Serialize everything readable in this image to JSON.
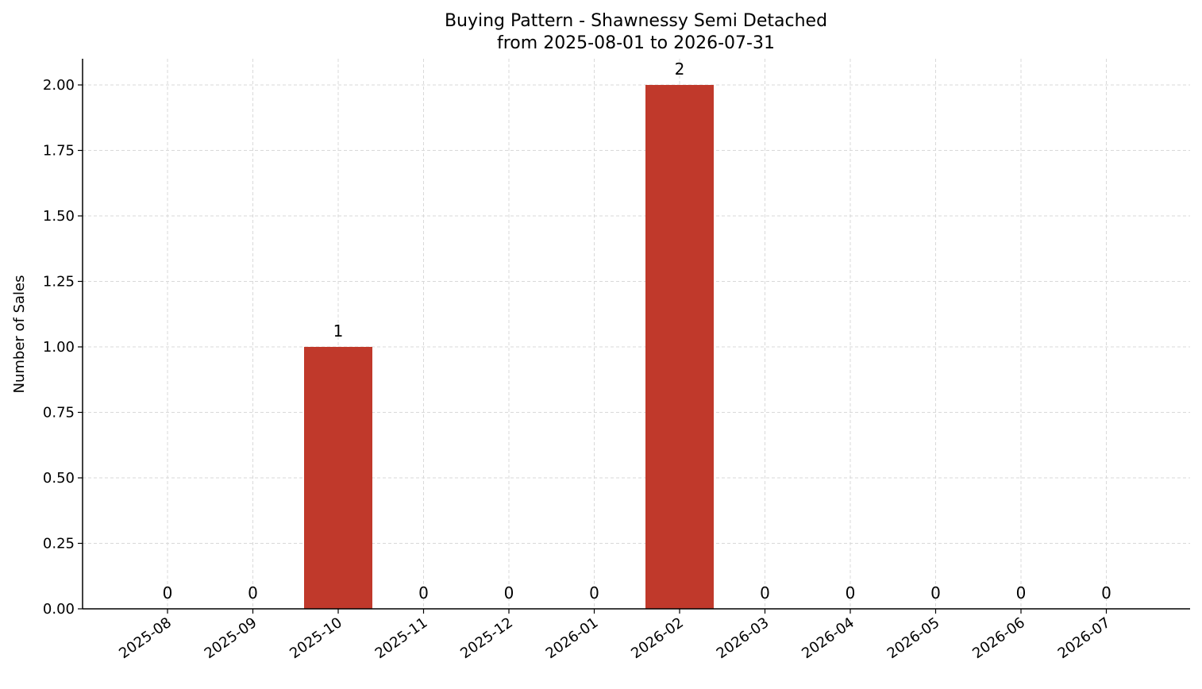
{
  "chart_data": {
    "type": "bar",
    "title": "Buying Pattern - Shawnessy Semi Detached",
    "subtitle": "from 2025-08-01 to 2026-07-31",
    "xlabel": "",
    "ylabel": "Number of Sales",
    "categories": [
      "2025-08",
      "2025-09",
      "2025-10",
      "2025-11",
      "2025-12",
      "2026-01",
      "2026-02",
      "2026-03",
      "2026-04",
      "2026-05",
      "2026-06",
      "2026-07"
    ],
    "values": [
      0,
      0,
      1,
      0,
      0,
      0,
      2,
      0,
      0,
      0,
      0,
      0
    ],
    "data_labels": [
      "0",
      "0",
      "1",
      "0",
      "0",
      "0",
      "2",
      "0",
      "0",
      "0",
      "0",
      "0"
    ],
    "ylim": [
      0,
      2.1
    ],
    "yticks": [
      0,
      0.25,
      0.5,
      0.75,
      1.0,
      1.25,
      1.5,
      1.75,
      2.0
    ],
    "ytick_labels": [
      "0.00",
      "0.25",
      "0.50",
      "0.75",
      "1.00",
      "1.25",
      "1.50",
      "1.75",
      "2.00"
    ],
    "grid": true,
    "bar_color": "#c0392b",
    "grid_color": "#d9d9d9",
    "axis_color": "#000000"
  }
}
